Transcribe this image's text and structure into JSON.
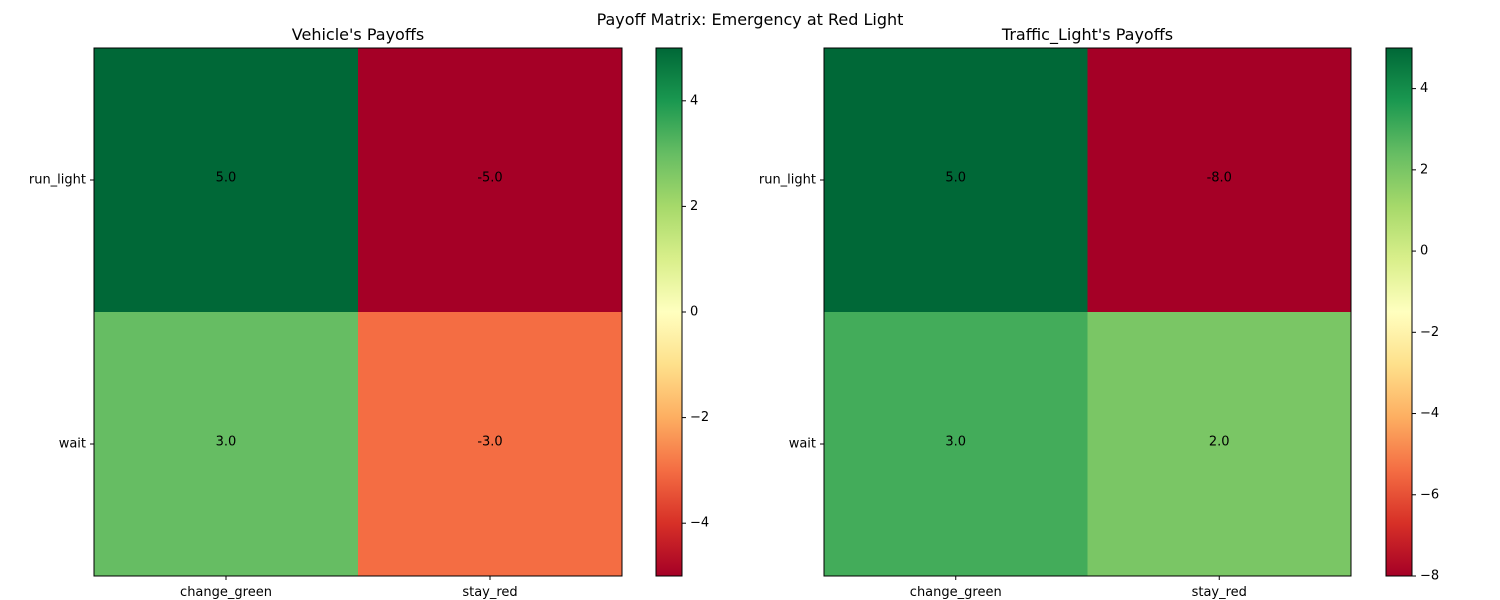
{
  "figure": {
    "suptitle": "Payoff Matrix: Emergency at Red Light"
  },
  "chart_data": [
    {
      "type": "heatmap",
      "title": "Vehicle's Payoffs",
      "row_labels": [
        "run_light",
        "wait"
      ],
      "col_labels": [
        "change_green",
        "stay_red"
      ],
      "values": [
        [
          5.0,
          -5.0
        ],
        [
          3.0,
          -3.0
        ]
      ],
      "cell_labels": [
        [
          "5.0",
          "-5.0"
        ],
        [
          "3.0",
          "-3.0"
        ]
      ],
      "colormap": "RdYlGn",
      "vmin": -5,
      "vmax": 5,
      "colorbar_ticks": [
        -4,
        -2,
        0,
        2,
        4
      ],
      "colorbar_tick_labels": [
        "−4",
        "−2",
        "0",
        "2",
        "4"
      ]
    },
    {
      "type": "heatmap",
      "title": "Traffic_Light's Payoffs",
      "row_labels": [
        "run_light",
        "wait"
      ],
      "col_labels": [
        "change_green",
        "stay_red"
      ],
      "values": [
        [
          5.0,
          -8.0
        ],
        [
          3.0,
          2.0
        ]
      ],
      "cell_labels": [
        [
          "5.0",
          "-8.0"
        ],
        [
          "3.0",
          "2.0"
        ]
      ],
      "colormap": "RdYlGn",
      "vmin": -8,
      "vmax": 5,
      "colorbar_ticks": [
        -8,
        -6,
        -4,
        -2,
        0,
        2,
        4
      ],
      "colorbar_tick_labels": [
        "−8",
        "−6",
        "−4",
        "−2",
        "0",
        "2",
        "4"
      ]
    }
  ]
}
